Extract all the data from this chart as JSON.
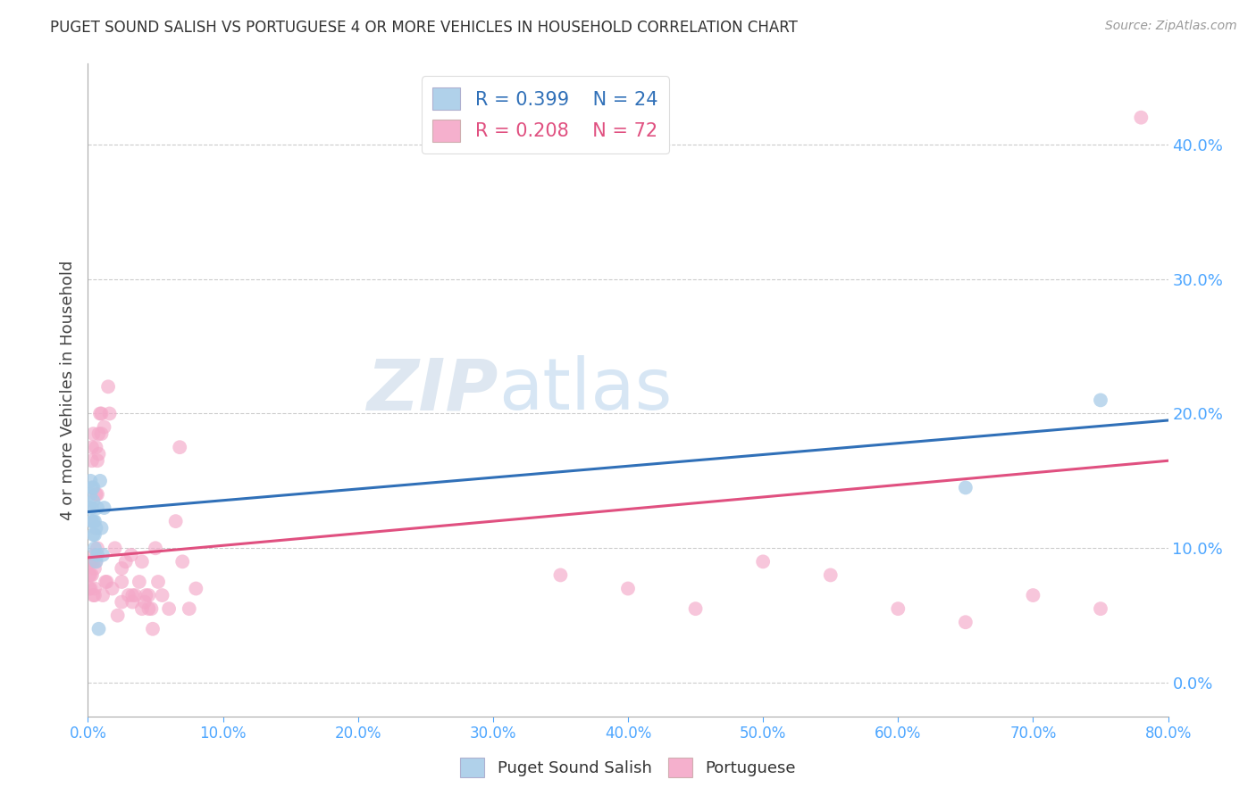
{
  "title": "PUGET SOUND SALISH VS PORTUGUESE 4 OR MORE VEHICLES IN HOUSEHOLD CORRELATION CHART",
  "source": "Source: ZipAtlas.com",
  "ylabel": "4 or more Vehicles in Household",
  "x_min": 0.0,
  "x_max": 0.8,
  "y_min": -0.025,
  "y_max": 0.46,
  "y_ticks": [
    0.0,
    0.1,
    0.2,
    0.3,
    0.4
  ],
  "x_ticks": [
    0.0,
    0.1,
    0.2,
    0.3,
    0.4,
    0.5,
    0.6,
    0.7,
    0.8
  ],
  "blue_label": "Puget Sound Salish",
  "pink_label": "Portuguese",
  "blue_R": 0.399,
  "blue_N": 24,
  "pink_R": 0.208,
  "pink_N": 72,
  "blue_color": "#a8cce8",
  "pink_color": "#f4a8c8",
  "blue_line_color": "#3070b8",
  "pink_line_color": "#e05080",
  "tick_label_color": "#4da6ff",
  "watermark_zip": "ZIP",
  "watermark_atlas": "atlas",
  "blue_scatter_x": [
    0.001,
    0.002,
    0.002,
    0.003,
    0.003,
    0.003,
    0.004,
    0.004,
    0.004,
    0.004,
    0.005,
    0.005,
    0.005,
    0.006,
    0.006,
    0.007,
    0.007,
    0.008,
    0.009,
    0.01,
    0.011,
    0.012,
    0.65,
    0.75
  ],
  "blue_scatter_y": [
    0.13,
    0.14,
    0.15,
    0.145,
    0.13,
    0.12,
    0.145,
    0.135,
    0.12,
    0.11,
    0.12,
    0.11,
    0.1,
    0.115,
    0.09,
    0.095,
    0.13,
    0.04,
    0.15,
    0.115,
    0.095,
    0.13,
    0.145,
    0.21
  ],
  "pink_scatter_x": [
    0.001,
    0.001,
    0.002,
    0.002,
    0.002,
    0.003,
    0.003,
    0.003,
    0.003,
    0.004,
    0.004,
    0.004,
    0.005,
    0.005,
    0.005,
    0.005,
    0.006,
    0.006,
    0.006,
    0.007,
    0.007,
    0.007,
    0.008,
    0.008,
    0.009,
    0.01,
    0.01,
    0.011,
    0.012,
    0.013,
    0.014,
    0.015,
    0.016,
    0.018,
    0.02,
    0.022,
    0.025,
    0.025,
    0.025,
    0.028,
    0.03,
    0.032,
    0.033,
    0.033,
    0.035,
    0.038,
    0.04,
    0.04,
    0.042,
    0.043,
    0.045,
    0.045,
    0.047,
    0.048,
    0.05,
    0.052,
    0.055,
    0.06,
    0.065,
    0.068,
    0.07,
    0.075,
    0.08,
    0.35,
    0.4,
    0.45,
    0.5,
    0.55,
    0.6,
    0.65,
    0.7,
    0.75
  ],
  "pink_scatter_y": [
    0.08,
    0.07,
    0.09,
    0.08,
    0.07,
    0.175,
    0.165,
    0.09,
    0.08,
    0.185,
    0.09,
    0.065,
    0.095,
    0.085,
    0.07,
    0.065,
    0.175,
    0.14,
    0.09,
    0.165,
    0.14,
    0.1,
    0.185,
    0.17,
    0.2,
    0.2,
    0.185,
    0.065,
    0.19,
    0.075,
    0.075,
    0.22,
    0.2,
    0.07,
    0.1,
    0.05,
    0.085,
    0.075,
    0.06,
    0.09,
    0.065,
    0.095,
    0.065,
    0.06,
    0.065,
    0.075,
    0.055,
    0.09,
    0.06,
    0.065,
    0.065,
    0.055,
    0.055,
    0.04,
    0.1,
    0.075,
    0.065,
    0.055,
    0.12,
    0.175,
    0.09,
    0.055,
    0.07,
    0.08,
    0.07,
    0.055,
    0.09,
    0.08,
    0.055,
    0.045,
    0.065,
    0.055
  ],
  "pink_outlier_x": [
    0.78
  ],
  "pink_outlier_y": [
    0.42
  ],
  "blue_line_x0": 0.0,
  "blue_line_y0": 0.127,
  "blue_line_x1": 0.8,
  "blue_line_y1": 0.195,
  "pink_line_x0": 0.0,
  "pink_line_y0": 0.093,
  "pink_line_x1": 0.8,
  "pink_line_y1": 0.165,
  "background_color": "#ffffff",
  "grid_color": "#cccccc",
  "title_color": "#333333"
}
